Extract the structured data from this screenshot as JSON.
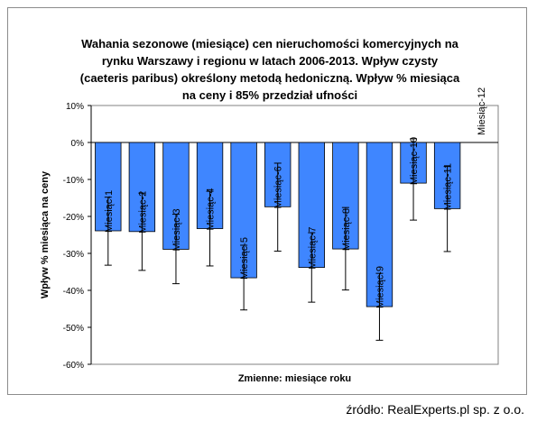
{
  "chart_data": {
    "type": "bar",
    "title_lines": [
      "Wahania sezonowe (miesiące) cen nieruchomości komercyjnych na",
      "rynku Warszawy i regionu w latach 2006-2013.  Wpływ czysty",
      "(caeteris paribus) określony metodą hedoniczną. Wpływ % miesiąca",
      "na ceny i 85% przedział ufności"
    ],
    "xlabel": "Zmienne: miesiące roku",
    "ylabel": "Wpływ % miesiąca na ceny",
    "ylim": [
      -60,
      10
    ],
    "yticks": [
      10,
      0,
      -10,
      -20,
      -30,
      -40,
      -50,
      -60
    ],
    "ytick_labels": [
      "10%",
      "0%",
      "-10%",
      "-20%",
      "-30%",
      "-40%",
      "-50%",
      "-60%"
    ],
    "categories": [
      "Miesiąc-1",
      "Miesiąc-2",
      "Miesiąc-3",
      "Miesiąc-4",
      "Miesiąc-5",
      "Miesiąc-6",
      "Miesiąc-7",
      "Miesiąc-8",
      "Miesiąc-9",
      "Miesiąc-10",
      "Miesiąc-11",
      "Miesiąc-12"
    ],
    "values": [
      -23.9,
      -24.1,
      -28.9,
      -23.3,
      -36.6,
      -17.4,
      -33.8,
      -28.8,
      -44.4,
      -11.0,
      -17.9,
      0
    ],
    "error_low": [
      -33.2,
      -34.6,
      -38.2,
      -33.4,
      -45.3,
      -29.4,
      -43.2,
      -39.9,
      -53.5,
      -21.0,
      -29.5,
      0
    ],
    "error_high": [
      -14.8,
      -13.7,
      -19.4,
      -13.2,
      -27.8,
      -5.6,
      -24.4,
      -17.6,
      -35.4,
      1.0,
      -6.5,
      0
    ],
    "bar_color": "#3f86ff",
    "grid": false,
    "legend": "none"
  },
  "source": "źródło: RealExperts.pl sp. z o.o."
}
